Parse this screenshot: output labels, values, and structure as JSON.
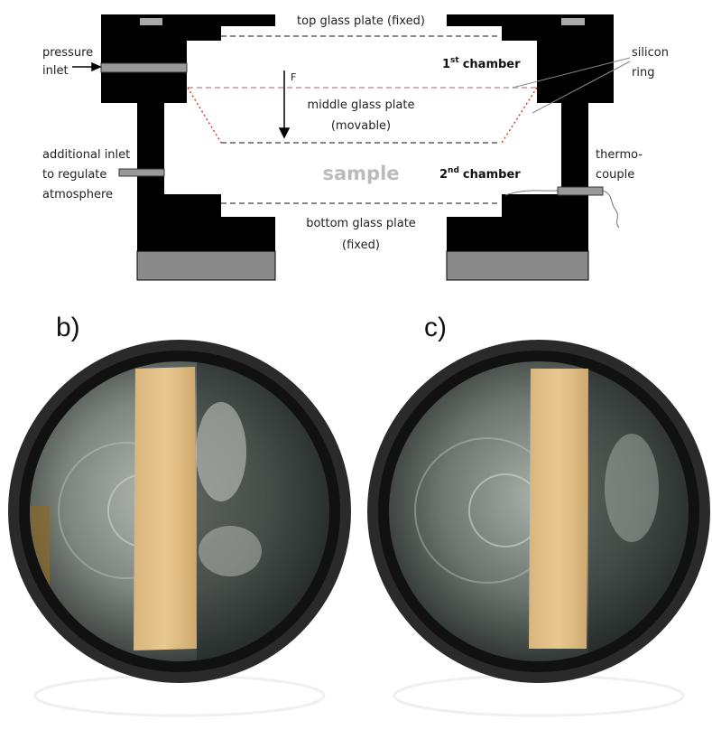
{
  "diagram": {
    "top_plate": "top glass plate (fixed)",
    "pressure_inlet": [
      "pressure",
      "inlet"
    ],
    "first_chamber": {
      "number": "1",
      "suffix": "st",
      "label": "chamber"
    },
    "silicon_ring": [
      "silicon",
      "ring"
    ],
    "force": "F",
    "middle_plate": [
      "middle glass plate",
      "(movable)"
    ],
    "sample": "sample",
    "second_chamber": {
      "number": "2",
      "suffix": "nd",
      "label": "chamber"
    },
    "additional_inlet": [
      "additional inlet",
      "to regulate",
      "atmosphere"
    ],
    "thermocouple": [
      "thermo-",
      "couple"
    ],
    "bottom_plate": [
      "bottom glass plate",
      "(fixed)"
    ]
  },
  "photos": [
    {
      "label": "b)"
    },
    {
      "label": "c)"
    }
  ]
}
